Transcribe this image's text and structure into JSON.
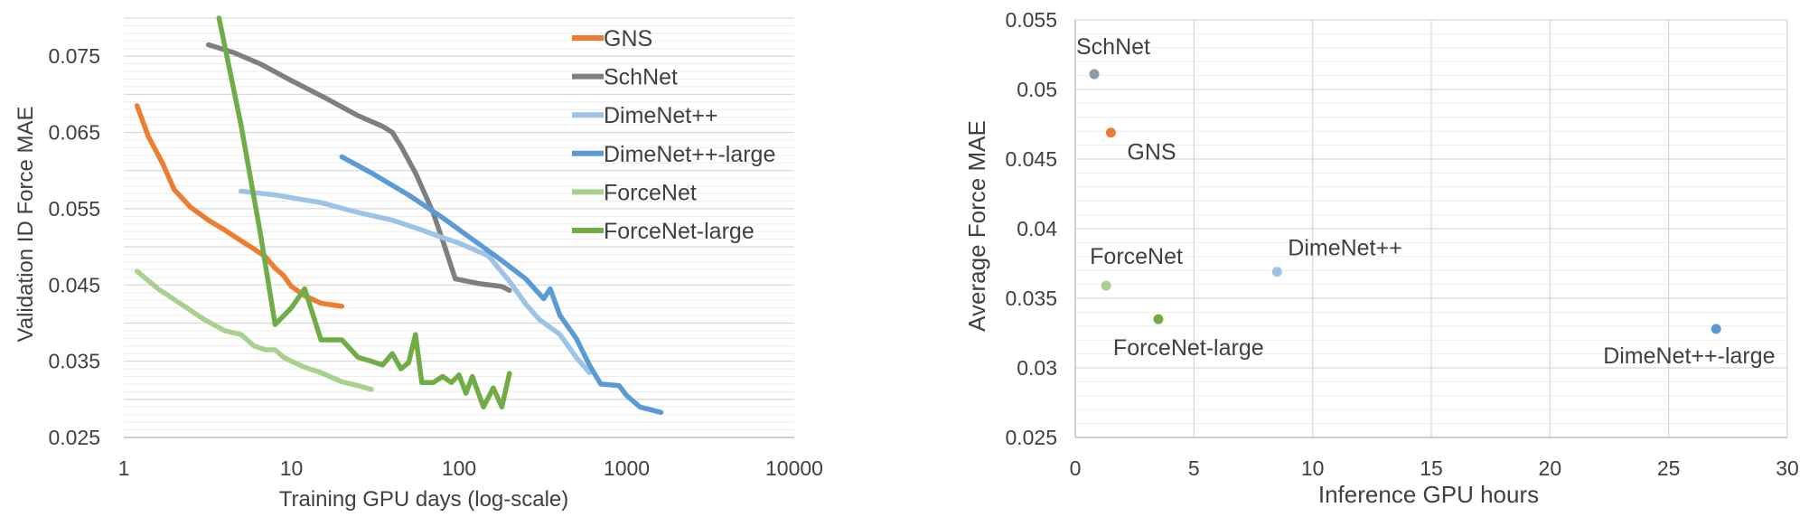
{
  "chart_data": [
    {
      "type": "line",
      "xlabel": "Training GPU days (log-scale)",
      "ylabel": "Validation ID Force MAE",
      "xscale": "log",
      "xlim": [
        1,
        10000
      ],
      "ylim": [
        0.025,
        0.08
      ],
      "x_ticks": [
        "1",
        "10",
        "100",
        "1000",
        "10000"
      ],
      "y_ticks": [
        "0.025",
        "0.035",
        "0.045",
        "0.055",
        "0.065",
        "0.075"
      ],
      "grid": "horizontal",
      "legend_position": "top-right",
      "series": [
        {
          "name": "GNS",
          "color": "#ED7D31",
          "x": [
            1.2,
            1.4,
            1.7,
            2.0,
            2.5,
            3.2,
            4.0,
            5.0,
            6.0,
            7.0,
            8.0,
            9.0,
            10,
            12,
            15,
            20
          ],
          "y": [
            0.0685,
            0.0645,
            0.061,
            0.0575,
            0.0552,
            0.0535,
            0.0522,
            0.0508,
            0.0497,
            0.0487,
            0.0472,
            0.0462,
            0.0448,
            0.0436,
            0.0426,
            0.0422
          ]
        },
        {
          "name": "SchNet",
          "color": "#7F7F7F",
          "x": [
            3.2,
            4.5,
            6.5,
            10,
            16,
            25,
            35,
            40,
            45,
            55,
            70,
            80,
            95,
            130,
            180,
            200
          ],
          "y": [
            0.0765,
            0.0755,
            0.074,
            0.0718,
            0.0695,
            0.0672,
            0.0658,
            0.065,
            0.0632,
            0.0597,
            0.0545,
            0.0508,
            0.0458,
            0.0452,
            0.0448,
            0.0443
          ]
        },
        {
          "name": "DimeNet++",
          "color": "#9DC3E6",
          "x": [
            5,
            8,
            15,
            25,
            40,
            60,
            80,
            100,
            150,
            200,
            250,
            300,
            400,
            500,
            600
          ],
          "y": [
            0.0573,
            0.0568,
            0.0558,
            0.0545,
            0.0535,
            0.0522,
            0.0512,
            0.0505,
            0.0488,
            0.0455,
            0.0425,
            0.0405,
            0.0385,
            0.0355,
            0.0335
          ]
        },
        {
          "name": "DimeNet++-large",
          "color": "#5B9BD5",
          "x": [
            20,
            30,
            50,
            80,
            120,
            180,
            250,
            320,
            350,
            400,
            500,
            600,
            700,
            900,
            1000,
            1200,
            1600
          ],
          "y": [
            0.0618,
            0.0597,
            0.0568,
            0.0538,
            0.051,
            0.0482,
            0.0458,
            0.0432,
            0.0445,
            0.041,
            0.038,
            0.0345,
            0.032,
            0.0318,
            0.0305,
            0.029,
            0.0283
          ]
        },
        {
          "name": "ForceNet",
          "color": "#A9D18E",
          "x": [
            1.2,
            1.6,
            2.2,
            3.0,
            4.0,
            5.0,
            6.0,
            7.0,
            8.0,
            9.0,
            10,
            12,
            15,
            20,
            25,
            30
          ],
          "y": [
            0.0468,
            0.0445,
            0.0425,
            0.0405,
            0.039,
            0.0385,
            0.037,
            0.0365,
            0.0365,
            0.0355,
            0.035,
            0.0342,
            0.0335,
            0.0323,
            0.0318,
            0.0313
          ]
        },
        {
          "name": "ForceNet-large",
          "color": "#70AD47",
          "x": [
            3.7,
            5.0,
            6.5,
            8.0,
            10,
            12,
            15,
            20,
            25,
            30,
            35,
            40,
            45,
            50,
            55,
            60,
            70,
            80,
            90,
            100,
            110,
            120,
            140,
            160,
            180,
            200
          ],
          "y": [
            0.08,
            0.066,
            0.052,
            0.0398,
            0.042,
            0.0445,
            0.0378,
            0.0378,
            0.0355,
            0.035,
            0.0345,
            0.036,
            0.034,
            0.0348,
            0.0385,
            0.0322,
            0.0322,
            0.033,
            0.0322,
            0.0332,
            0.0308,
            0.033,
            0.029,
            0.0315,
            0.029,
            0.0334
          ]
        }
      ]
    },
    {
      "type": "scatter",
      "xlabel": "Inference GPU hours",
      "ylabel": "Average Force MAE",
      "xlim": [
        0,
        30
      ],
      "ylim": [
        0.025,
        0.055
      ],
      "x_ticks": [
        "0",
        "5",
        "10",
        "15",
        "20",
        "25",
        "30"
      ],
      "y_ticks": [
        "0.025",
        "0.03",
        "0.035",
        "0.04",
        "0.045",
        "0.05",
        "0.055"
      ],
      "grid": "both",
      "points": [
        {
          "label": "SchNet",
          "x": 0.8,
          "y": 0.0511,
          "color": "#8C9BA8"
        },
        {
          "label": "GNS",
          "x": 1.5,
          "y": 0.0469,
          "color": "#ED7D31"
        },
        {
          "label": "ForceNet",
          "x": 1.3,
          "y": 0.0359,
          "color": "#A9D18E"
        },
        {
          "label": "ForceNet-large",
          "x": 3.5,
          "y": 0.0335,
          "color": "#70AD47"
        },
        {
          "label": "DimeNet++",
          "x": 8.5,
          "y": 0.0369,
          "color": "#9DC3E6"
        },
        {
          "label": "DimeNet++-large",
          "x": 27.0,
          "y": 0.0328,
          "color": "#5B9BD5"
        }
      ]
    }
  ]
}
